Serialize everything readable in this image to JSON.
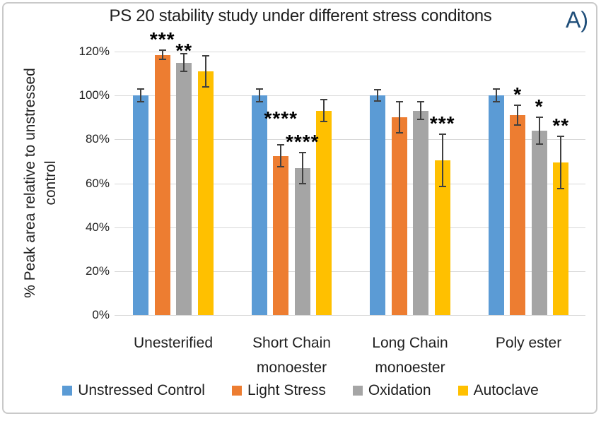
{
  "figure_label": "A)",
  "colors": {
    "figure_label": "#1F4E79",
    "grid": "#d9d9d9",
    "error_bar": "#404040",
    "text": "#1f1f1f"
  },
  "chart_data": {
    "type": "bar",
    "title": "PS 20 stability study under different stress conditons",
    "ylabel": "% Peak area relative to unstressed control",
    "ylabel_lines": [
      "% Peak area relative to unstressed",
      "control"
    ],
    "xlabel": "",
    "ylim": [
      0,
      120
    ],
    "ytick_step": 20,
    "ytick_labels": [
      "0%",
      "20%",
      "40%",
      "60%",
      "80%",
      "100%",
      "120%"
    ],
    "grid": true,
    "legend_position": "bottom",
    "categories": [
      {
        "lines": [
          "Unesterified"
        ]
      },
      {
        "lines": [
          "Short Chain",
          "monoester"
        ]
      },
      {
        "lines": [
          "Long Chain",
          "monoester"
        ]
      },
      {
        "lines": [
          "Poly ester"
        ]
      }
    ],
    "series": [
      {
        "name": "Unstressed Control",
        "color": "#5B9BD5",
        "values": [
          100,
          100,
          100,
          100
        ],
        "errors": [
          3,
          3,
          2.5,
          3
        ]
      },
      {
        "name": "Light Stress",
        "color": "#ED7D31",
        "values": [
          118.5,
          72.5,
          90,
          91
        ],
        "errors": [
          2,
          5,
          7,
          4.5
        ]
      },
      {
        "name": "Oxidation",
        "color": "#A5A5A5",
        "values": [
          115,
          67,
          93,
          84
        ],
        "errors": [
          4,
          7,
          4,
          6
        ]
      },
      {
        "name": "Autoclave",
        "color": "#FFC000",
        "values": [
          111,
          93,
          70.5,
          69.5
        ],
        "errors": [
          7,
          5,
          12,
          12
        ]
      }
    ],
    "annotations": [
      {
        "category": 0,
        "series": 1,
        "stars": "***",
        "raise": 0
      },
      {
        "category": 0,
        "series": 2,
        "stars": "**",
        "raise": -11
      },
      {
        "category": 1,
        "series": 1,
        "stars": "****",
        "raise": 22
      },
      {
        "category": 1,
        "series": 2,
        "stars": "****",
        "raise": 0
      },
      {
        "category": 2,
        "series": 3,
        "stars": "***",
        "raise": 0
      },
      {
        "category": 3,
        "series": 1,
        "stars": "*",
        "raise": 0
      },
      {
        "category": 3,
        "series": 2,
        "stars": "*",
        "raise": 0
      },
      {
        "category": 3,
        "series": 3,
        "stars": "**",
        "raise": 0
      }
    ]
  }
}
